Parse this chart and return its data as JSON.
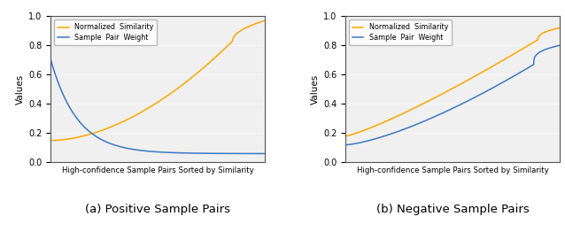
{
  "orange_color": "#FFA500",
  "blue_color": "#3B78C4",
  "legend_labels": [
    "Normalized  Similarity",
    "Sample  Pair  Weight"
  ],
  "xlabel": "High-confidence Sample Pairs Sorted by Similarity",
  "ylabel": "Values",
  "subtitle_a": "(a) Positive Sample Pairs",
  "subtitle_b": "(b) Negative Sample Pairs",
  "yticks": [
    0.0,
    0.2,
    0.4,
    0.6,
    0.8,
    1.0
  ],
  "n_points": 1000,
  "bg_color": "#f0f0f0"
}
